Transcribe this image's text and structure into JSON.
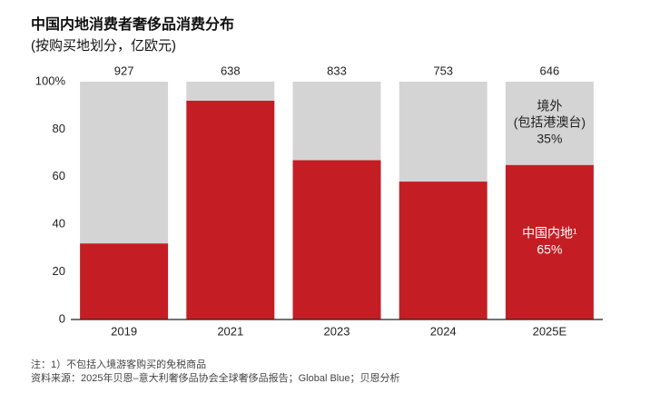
{
  "chart_data": {
    "type": "stacked_bar_100",
    "title": "中国内地消费者奢侈品消费分布",
    "subtitle": "(按购买地划分，亿欧元)",
    "categories": [
      "2019",
      "2021",
      "2023",
      "2024",
      "2025E"
    ],
    "totals": [
      927,
      638,
      833,
      753,
      646
    ],
    "series": [
      {
        "name": "中国内地¹",
        "color": "#c41e24",
        "values": [
          32,
          92,
          67,
          58,
          65
        ],
        "value_labels": [
          null,
          null,
          null,
          null,
          "65%"
        ]
      },
      {
        "name": "境外",
        "name_detail": "(包括港澳台)",
        "color": "#d4d4d4",
        "values": [
          68,
          8,
          33,
          42,
          35
        ],
        "value_labels": [
          null,
          null,
          null,
          null,
          "35%"
        ]
      }
    ],
    "ylim": [
      0,
      100
    ],
    "yticks": [
      0,
      20,
      40,
      60,
      80,
      {
        "value": 100,
        "label": "100%"
      }
    ],
    "notes": [
      "注：1）不包括入境游客购买的免税商品",
      "资料来源：2025年贝恩–意大利奢侈品协会全球奢侈品报告；Global Blue；贝恩分析"
    ]
  }
}
